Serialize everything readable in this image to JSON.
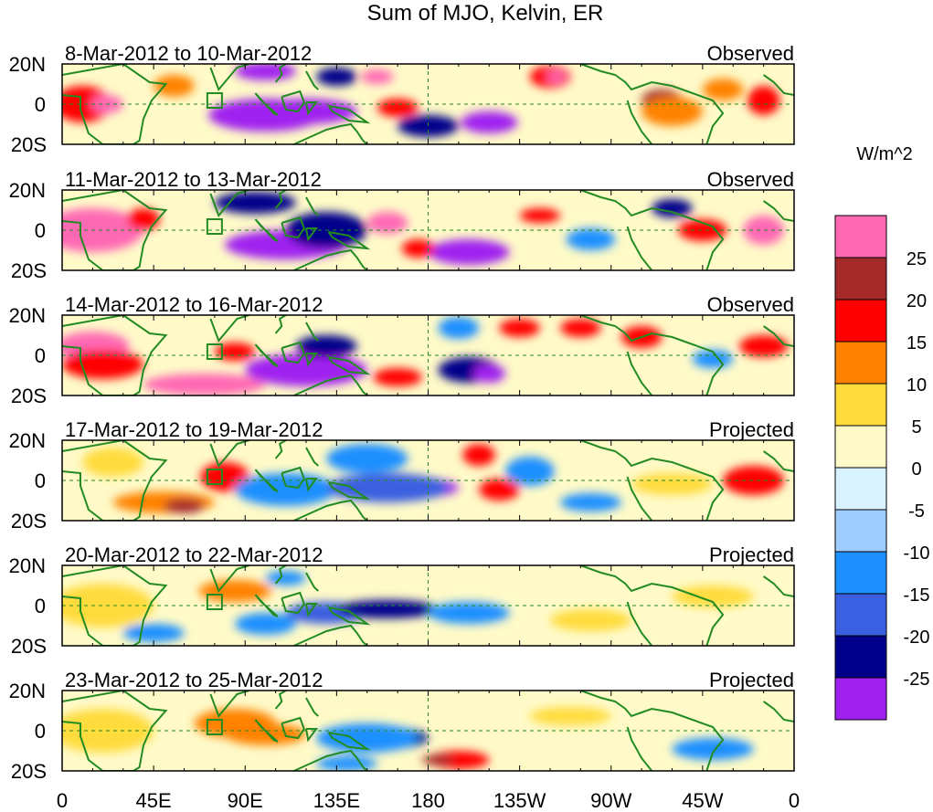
{
  "title": "Sum of MJO, Kelvin, ER",
  "colorbar": {
    "units": "W/m^2",
    "colors": [
      "#a020f0",
      "#00008b",
      "#3a5fe0",
      "#1e90ff",
      "#a0cdff",
      "#d9f2ff",
      "#fffac8",
      "#ffdc3c",
      "#ff8200",
      "#ff0000",
      "#a52a2a",
      "#ff69b4"
    ],
    "tick_labels": [
      "-25",
      "-20",
      "-15",
      "-10",
      "-5",
      "0",
      "5",
      "10",
      "15",
      "20",
      "25"
    ]
  },
  "axes": {
    "lat_labels": [
      "20N",
      "0",
      "20S"
    ],
    "lon_labels": [
      "0",
      "45E",
      "90E",
      "135E",
      "180",
      "135W",
      "90W",
      "45W",
      "0"
    ]
  },
  "panels": [
    {
      "date_range": "8-Mar-2012 to 10-Mar-2012",
      "type": "Observed"
    },
    {
      "date_range": "11-Mar-2012 to 13-Mar-2012",
      "type": "Observed"
    },
    {
      "date_range": "14-Mar-2012 to 16-Mar-2012",
      "type": "Observed"
    },
    {
      "date_range": "17-Mar-2012 to 19-Mar-2012",
      "type": "Projected"
    },
    {
      "date_range": "20-Mar-2012 to 22-Mar-2012",
      "type": "Projected"
    },
    {
      "date_range": "23-Mar-2012 to 25-Mar-2012",
      "type": "Projected"
    }
  ]
}
